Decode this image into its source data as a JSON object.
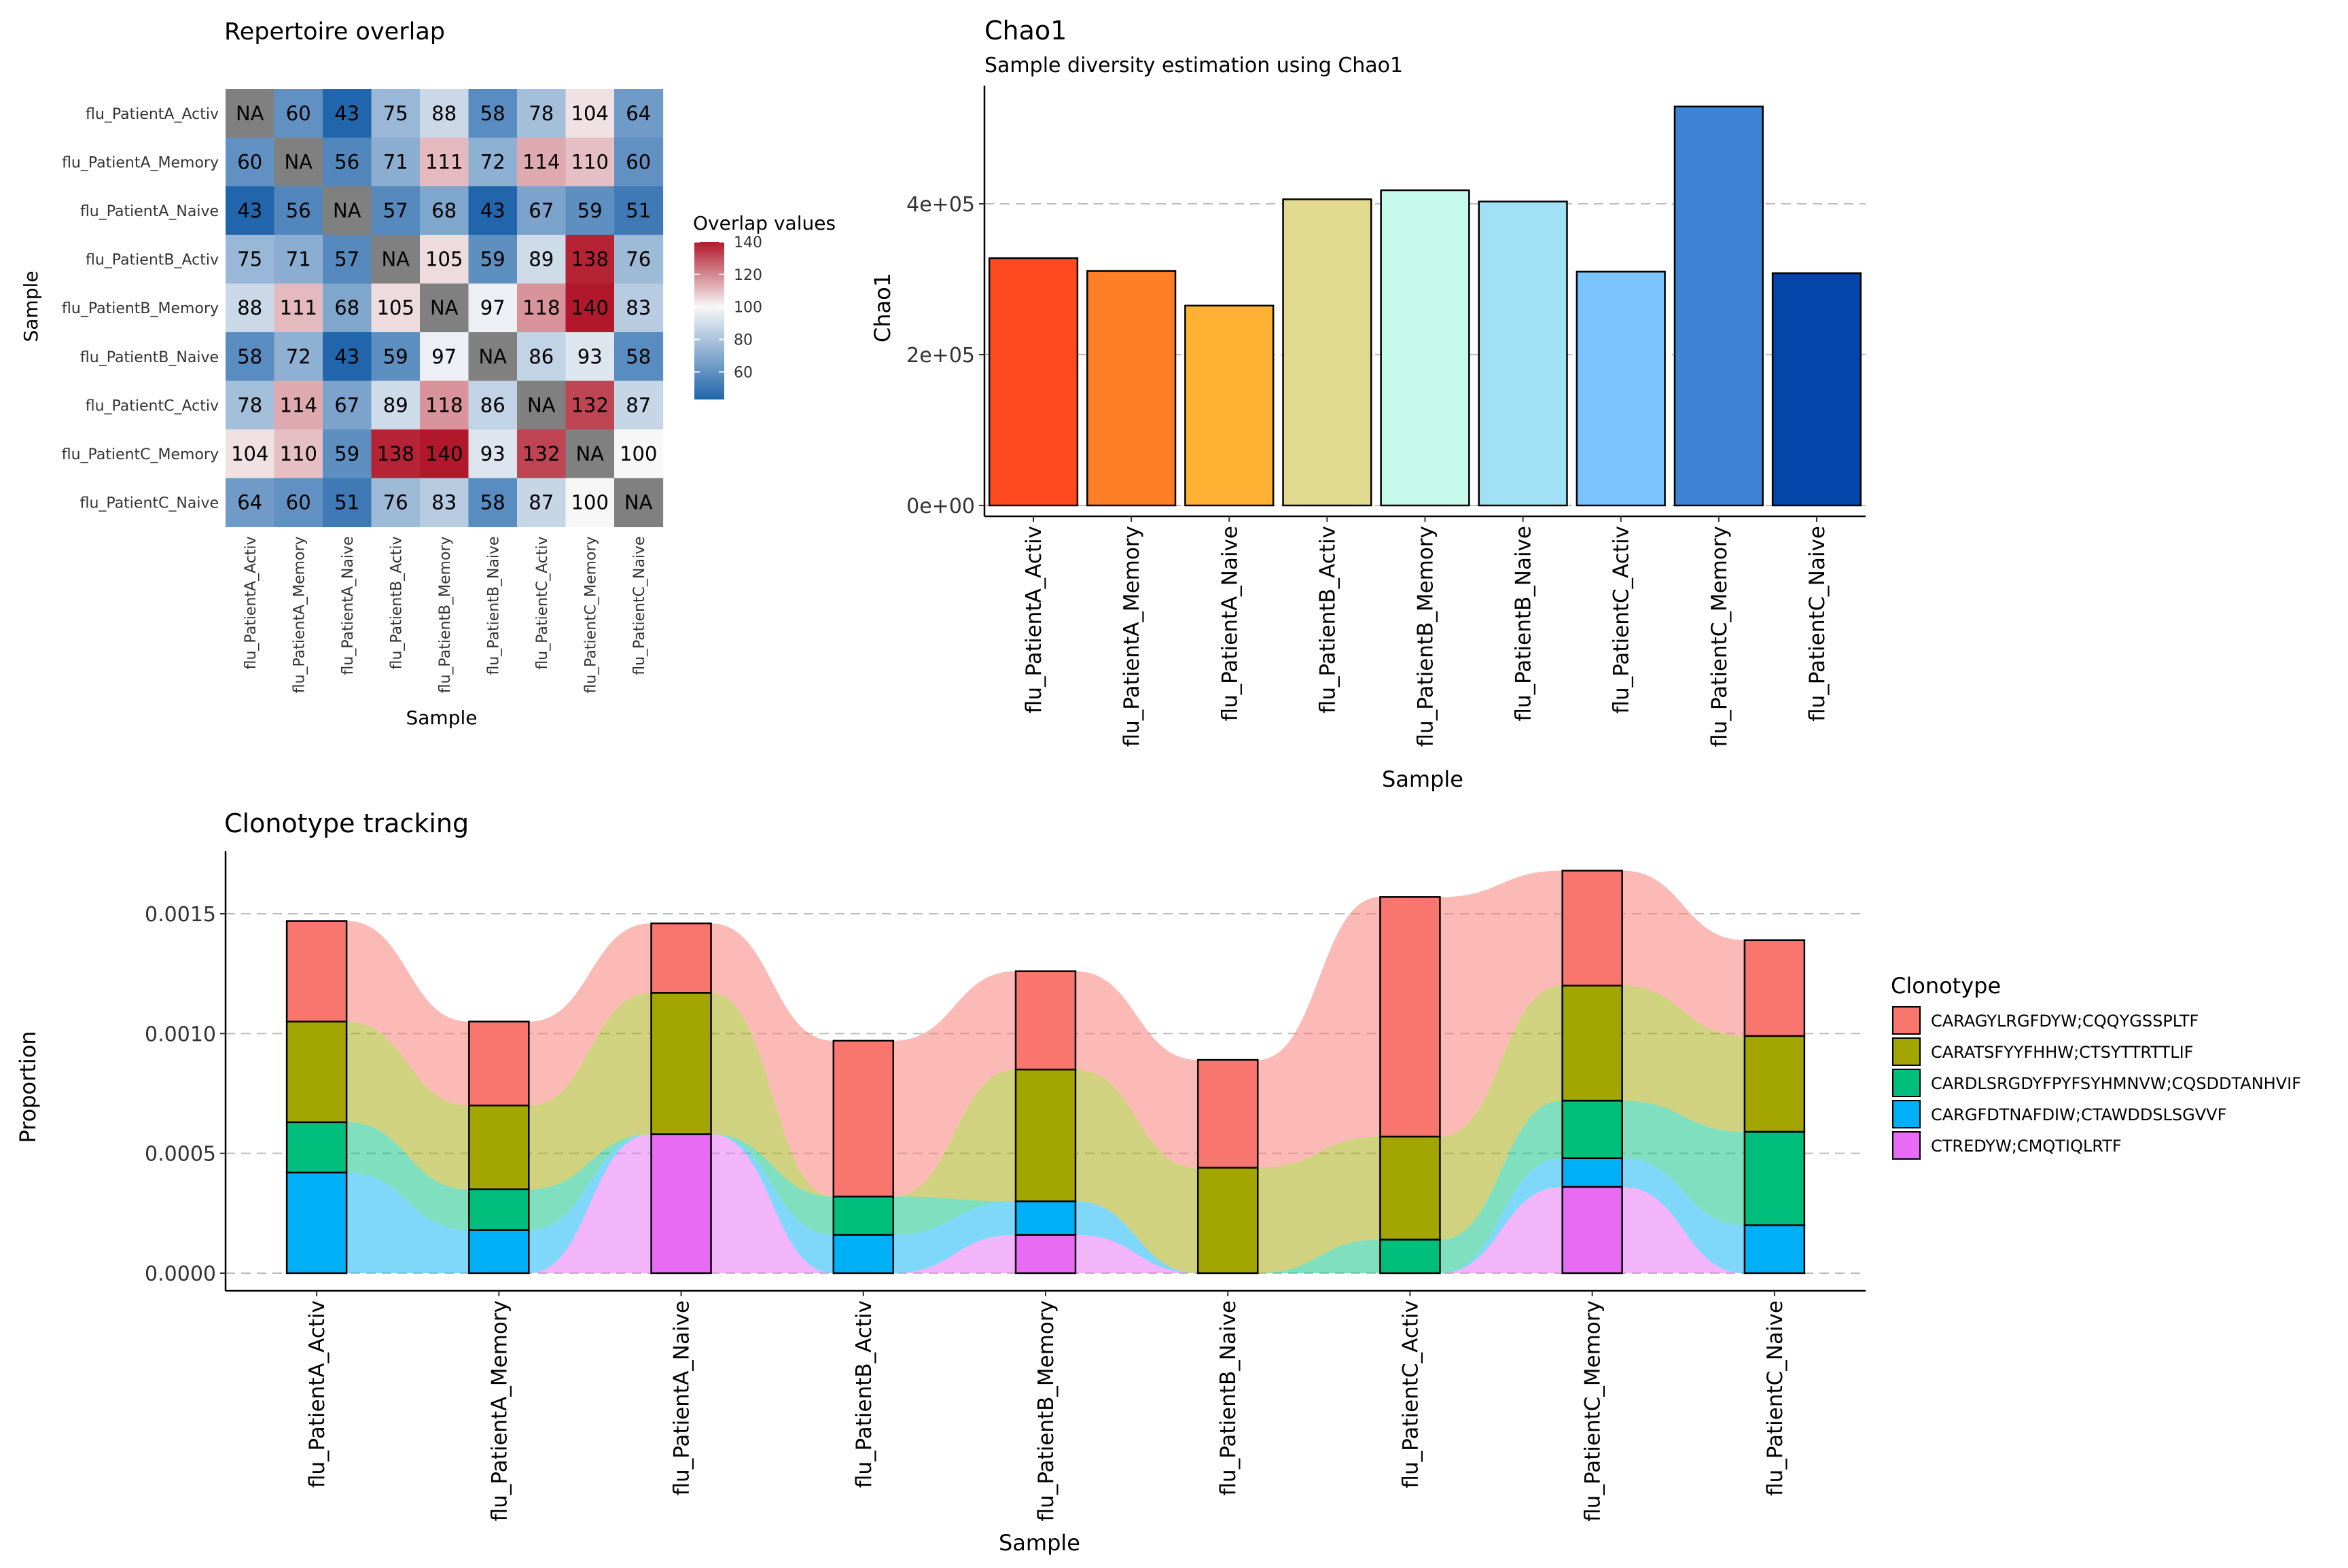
{
  "colors": {
    "heat_low": "#2166AC",
    "heat_mid": "#F7F7F7",
    "heat_high": "#B2182B",
    "heat_na": "#808080",
    "grid": "#bdbdbd"
  },
  "chart_data": [
    {
      "type": "heatmap",
      "title": "Repertoire overlap",
      "xlabel": "Sample",
      "ylabel": "Sample",
      "legend_title": "Overlap values",
      "legend_ticks": [
        "60",
        "80",
        "100",
        "120",
        "140"
      ],
      "samples": [
        "flu_PatientA_Activ",
        "flu_PatientA_Memory",
        "flu_PatientA_Naive",
        "flu_PatientB_Activ",
        "flu_PatientB_Memory",
        "flu_PatientB_Naive",
        "flu_PatientC_Activ",
        "flu_PatientC_Memory",
        "flu_PatientC_Naive"
      ],
      "values": [
        [
          "NA",
          "60",
          "43",
          "75",
          "88",
          "58",
          "78",
          "104",
          "64"
        ],
        [
          "60",
          "NA",
          "56",
          "71",
          "111",
          "72",
          "114",
          "110",
          "60"
        ],
        [
          "43",
          "56",
          "NA",
          "57",
          "68",
          "43",
          "67",
          "59",
          "51"
        ],
        [
          "75",
          "71",
          "57",
          "NA",
          "105",
          "59",
          "89",
          "138",
          "76"
        ],
        [
          "88",
          "111",
          "68",
          "105",
          "NA",
          "97",
          "118",
          "140",
          "83"
        ],
        [
          "58",
          "72",
          "43",
          "59",
          "97",
          "NA",
          "86",
          "93",
          "58"
        ],
        [
          "78",
          "114",
          "67",
          "89",
          "118",
          "86",
          "NA",
          "132",
          "87"
        ],
        [
          "104",
          "110",
          "59",
          "138",
          "140",
          "93",
          "132",
          "NA",
          "100"
        ],
        [
          "64",
          "60",
          "51",
          "76",
          "83",
          "58",
          "87",
          "100",
          "NA"
        ]
      ],
      "range": [
        43,
        140
      ],
      "legend": "right"
    },
    {
      "type": "bar",
      "title": "Chao1",
      "subtitle": "Sample diversity estimation using Chao1",
      "xlabel": "Sample",
      "ylabel": "Chao1",
      "categories": [
        "flu_PatientA_Activ",
        "flu_PatientA_Memory",
        "flu_PatientA_Naive",
        "flu_PatientB_Activ",
        "flu_PatientB_Memory",
        "flu_PatientB_Naive",
        "flu_PatientC_Activ",
        "flu_PatientC_Memory",
        "flu_PatientC_Naive"
      ],
      "values": [
        328000,
        311000,
        265000,
        406000,
        418000,
        403000,
        310000,
        529000,
        308000
      ],
      "bar_colors": [
        "#FF4A1F",
        "#FF7F27",
        "#FFB133",
        "#E2DA8F",
        "#C6FBEB",
        "#A2E0F6",
        "#7BC3FF",
        "#3D85D4",
        "#0146A8"
      ],
      "ylim": [
        0,
        550000
      ],
      "yticks": [
        {
          "value": 0,
          "label": "0e+00"
        },
        {
          "value": 200000,
          "label": "2e+05"
        },
        {
          "value": 400000,
          "label": "4e+05"
        }
      ],
      "grid": "horizontal dashed"
    },
    {
      "type": "bar",
      "stacked": true,
      "title": "Clonotype tracking",
      "xlabel": "Sample",
      "ylabel": "Proportion",
      "legend_title": "Clonotype",
      "legend": "right",
      "categories": [
        "flu_PatientA_Activ",
        "flu_PatientA_Memory",
        "flu_PatientA_Naive",
        "flu_PatientB_Activ",
        "flu_PatientB_Memory",
        "flu_PatientB_Naive",
        "flu_PatientC_Activ",
        "flu_PatientC_Memory",
        "flu_PatientC_Naive"
      ],
      "series": [
        {
          "name": "CTREDYW;CMQTIQLRTF",
          "color": "#E76BF3",
          "values": [
            0,
            0,
            0.00058,
            0,
            0.00016,
            0,
            0,
            0.00036,
            0
          ]
        },
        {
          "name": "CARGFDTNAFDIW;CTAWDDSLSGVVF",
          "color": "#00B0F6",
          "values": [
            0.00042,
            0.00018,
            0,
            0.00016,
            0.00014,
            0,
            0,
            0.00012,
            0.0002
          ]
        },
        {
          "name": "CARDLSRGDYFPYFSYHMNVW;CQSDDTANHVIF",
          "color": "#00BF7D",
          "values": [
            0.00021,
            0.00017,
            0,
            0.00016,
            0,
            0,
            0.00014,
            0.00024,
            0.00039
          ]
        },
        {
          "name": "CARATSFYYFHHW;CTSYTTRTTLIF",
          "color": "#A3A500",
          "values": [
            0.00042,
            0.00035,
            0.00059,
            0,
            0.00055,
            0.00044,
            0.00043,
            0.00048,
            0.0004
          ]
        },
        {
          "name": "CARAGYLRGFDYW;CQQYGSSPLTF",
          "color": "#F8766D",
          "values": [
            0.00042,
            0.00035,
            0.00029,
            0.00065,
            0.00041,
            0.00045,
            0.001,
            0.00048,
            0.0004
          ]
        }
      ],
      "legend_order": [
        "CARAGYLRGFDYW;CQQYGSSPLTF",
        "CARATSFYYFHHW;CTSYTTRTTLIF",
        "CARDLSRGDYFPYFSYHMNVW;CQSDDTANHVIF",
        "CARGFDTNAFDIW;CTAWDDSLSGVVF",
        "CTREDYW;CMQTIQLRTF"
      ],
      "ylim": [
        0,
        0.00175
      ],
      "yticks": [
        "0.0000",
        "0.0005",
        "0.0010",
        "0.0015"
      ],
      "grid": "horizontal dashed"
    }
  ]
}
